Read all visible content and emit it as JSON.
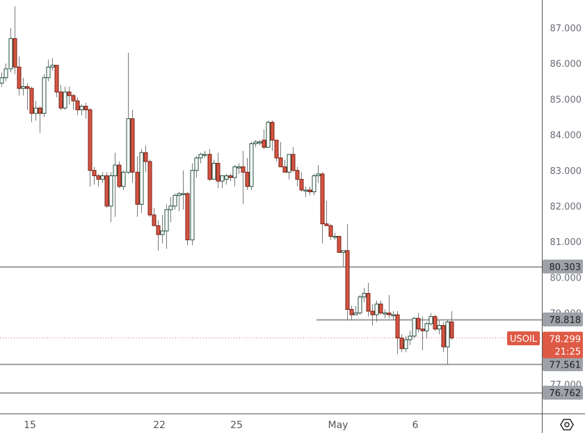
{
  "chart_data": {
    "type": "candlestick",
    "symbol": "USOIL",
    "title": "",
    "xlabel": "",
    "ylabel": "",
    "ylim": [
      76.3,
      87.8
    ],
    "y_ticks": [
      "87.000",
      "86.000",
      "85.000",
      "84.000",
      "83.000",
      "82.000",
      "81.000",
      "80.000",
      "79.000",
      "77.000"
    ],
    "x_ticks": [
      {
        "label": "15",
        "x": 43
      },
      {
        "label": "22",
        "x": 229
      },
      {
        "label": "25",
        "x": 340
      },
      {
        "label": "May",
        "x": 486
      },
      {
        "label": "6",
        "x": 597
      }
    ],
    "current_price": "78.299",
    "countdown": "21:25",
    "horizontal_levels": [
      {
        "price": "80.303",
        "x_start": 0
      },
      {
        "price": "78.818",
        "x_start": 455
      },
      {
        "price": "77.561",
        "x_start": 0
      },
      {
        "price": "76.762",
        "x_start": 0
      }
    ],
    "candles": [
      {
        "x": 2,
        "o": 85.45,
        "h": 85.75,
        "l": 85.35,
        "c": 85.6
      },
      {
        "x": 8,
        "o": 85.6,
        "h": 86.0,
        "l": 85.5,
        "c": 85.85
      },
      {
        "x": 15,
        "o": 85.85,
        "h": 87.0,
        "l": 85.75,
        "c": 86.7
      },
      {
        "x": 21,
        "o": 86.7,
        "h": 87.6,
        "l": 85.7,
        "c": 85.9
      },
      {
        "x": 27,
        "o": 85.9,
        "h": 86.2,
        "l": 85.1,
        "c": 85.3
      },
      {
        "x": 33,
        "o": 85.3,
        "h": 85.6,
        "l": 85.1,
        "c": 85.35
      },
      {
        "x": 39,
        "o": 85.35,
        "h": 85.45,
        "l": 84.7,
        "c": 85.3
      },
      {
        "x": 45,
        "o": 85.3,
        "h": 85.35,
        "l": 84.35,
        "c": 84.6
      },
      {
        "x": 51,
        "o": 84.6,
        "h": 84.95,
        "l": 84.4,
        "c": 84.75
      },
      {
        "x": 57,
        "o": 84.75,
        "h": 84.8,
        "l": 84.05,
        "c": 84.6
      },
      {
        "x": 63,
        "o": 84.6,
        "h": 85.7,
        "l": 84.5,
        "c": 85.6
      },
      {
        "x": 69,
        "o": 85.6,
        "h": 86.1,
        "l": 85.5,
        "c": 85.9
      },
      {
        "x": 75,
        "o": 85.9,
        "h": 86.15,
        "l": 85.8,
        "c": 85.95
      },
      {
        "x": 81,
        "o": 85.95,
        "h": 85.95,
        "l": 85.05,
        "c": 85.2
      },
      {
        "x": 87,
        "o": 85.2,
        "h": 85.4,
        "l": 84.7,
        "c": 84.75
      },
      {
        "x": 93,
        "o": 84.75,
        "h": 85.35,
        "l": 84.7,
        "c": 85.2
      },
      {
        "x": 99,
        "o": 85.2,
        "h": 85.35,
        "l": 84.85,
        "c": 85.1
      },
      {
        "x": 105,
        "o": 85.1,
        "h": 85.15,
        "l": 84.7,
        "c": 84.95
      },
      {
        "x": 111,
        "o": 84.95,
        "h": 85.05,
        "l": 84.55,
        "c": 84.7
      },
      {
        "x": 117,
        "o": 84.7,
        "h": 84.85,
        "l": 84.55,
        "c": 84.8
      },
      {
        "x": 123,
        "o": 84.8,
        "h": 84.9,
        "l": 84.45,
        "c": 84.7
      },
      {
        "x": 129,
        "o": 84.7,
        "h": 84.75,
        "l": 82.55,
        "c": 83.0
      },
      {
        "x": 135,
        "o": 83.0,
        "h": 83.1,
        "l": 82.6,
        "c": 82.85
      },
      {
        "x": 141,
        "o": 82.85,
        "h": 82.9,
        "l": 82.55,
        "c": 82.75
      },
      {
        "x": 147,
        "o": 82.75,
        "h": 82.95,
        "l": 82.65,
        "c": 82.85
      },
      {
        "x": 153,
        "o": 82.85,
        "h": 82.95,
        "l": 81.95,
        "c": 82.0
      },
      {
        "x": 159,
        "o": 82.0,
        "h": 82.95,
        "l": 81.55,
        "c": 82.85
      },
      {
        "x": 165,
        "o": 82.85,
        "h": 83.5,
        "l": 81.7,
        "c": 83.15
      },
      {
        "x": 171,
        "o": 83.15,
        "h": 83.25,
        "l": 82.5,
        "c": 82.55
      },
      {
        "x": 177,
        "o": 82.55,
        "h": 83.0,
        "l": 82.45,
        "c": 82.95
      },
      {
        "x": 184,
        "o": 82.95,
        "h": 86.3,
        "l": 82.9,
        "c": 84.45
      },
      {
        "x": 190,
        "o": 84.45,
        "h": 84.7,
        "l": 82.65,
        "c": 82.95
      },
      {
        "x": 197,
        "o": 82.95,
        "h": 83.4,
        "l": 81.7,
        "c": 82.05
      },
      {
        "x": 203,
        "o": 82.05,
        "h": 83.6,
        "l": 81.8,
        "c": 83.5
      },
      {
        "x": 209,
        "o": 83.5,
        "h": 83.7,
        "l": 82.95,
        "c": 83.25
      },
      {
        "x": 215,
        "o": 83.25,
        "h": 83.3,
        "l": 81.7,
        "c": 81.75
      },
      {
        "x": 221,
        "o": 81.75,
        "h": 81.95,
        "l": 81.45,
        "c": 81.45
      },
      {
        "x": 227,
        "o": 81.45,
        "h": 81.6,
        "l": 80.75,
        "c": 81.2
      },
      {
        "x": 233,
        "o": 81.2,
        "h": 81.75,
        "l": 80.95,
        "c": 81.3
      },
      {
        "x": 239,
        "o": 81.3,
        "h": 82.05,
        "l": 80.8,
        "c": 81.9
      },
      {
        "x": 245,
        "o": 81.9,
        "h": 82.25,
        "l": 81.55,
        "c": 82.0
      },
      {
        "x": 251,
        "o": 82.0,
        "h": 82.35,
        "l": 81.9,
        "c": 82.3
      },
      {
        "x": 257,
        "o": 82.3,
        "h": 82.4,
        "l": 81.85,
        "c": 82.35
      },
      {
        "x": 263,
        "o": 82.35,
        "h": 83.0,
        "l": 81.9,
        "c": 82.35
      },
      {
        "x": 269,
        "o": 82.35,
        "h": 82.4,
        "l": 80.9,
        "c": 81.05
      },
      {
        "x": 276,
        "o": 81.05,
        "h": 83.2,
        "l": 80.9,
        "c": 83.0
      },
      {
        "x": 282,
        "o": 83.0,
        "h": 83.4,
        "l": 82.8,
        "c": 83.35
      },
      {
        "x": 288,
        "o": 83.35,
        "h": 83.5,
        "l": 83.2,
        "c": 83.45
      },
      {
        "x": 294,
        "o": 83.45,
        "h": 83.55,
        "l": 83.35,
        "c": 83.45
      },
      {
        "x": 301,
        "o": 83.45,
        "h": 83.6,
        "l": 82.7,
        "c": 82.75
      },
      {
        "x": 307,
        "o": 82.75,
        "h": 83.3,
        "l": 82.75,
        "c": 83.2
      },
      {
        "x": 313,
        "o": 83.2,
        "h": 83.5,
        "l": 82.5,
        "c": 82.7
      },
      {
        "x": 319,
        "o": 82.7,
        "h": 82.8,
        "l": 82.5,
        "c": 82.85
      },
      {
        "x": 325,
        "o": 82.75,
        "h": 82.9,
        "l": 82.6,
        "c": 82.85
      },
      {
        "x": 331,
        "o": 82.85,
        "h": 82.9,
        "l": 82.7,
        "c": 82.8
      },
      {
        "x": 337,
        "o": 82.8,
        "h": 83.15,
        "l": 82.55,
        "c": 83.1
      },
      {
        "x": 343,
        "o": 83.1,
        "h": 83.2,
        "l": 82.9,
        "c": 83.1
      },
      {
        "x": 349,
        "o": 83.1,
        "h": 83.55,
        "l": 82.05,
        "c": 82.95
      },
      {
        "x": 355,
        "o": 82.95,
        "h": 83.35,
        "l": 82.45,
        "c": 82.55
      },
      {
        "x": 361,
        "o": 82.55,
        "h": 83.8,
        "l": 82.45,
        "c": 83.75
      },
      {
        "x": 367,
        "o": 83.75,
        "h": 83.85,
        "l": 83.65,
        "c": 83.8
      },
      {
        "x": 373,
        "o": 83.8,
        "h": 83.85,
        "l": 83.7,
        "c": 83.8
      },
      {
        "x": 379,
        "o": 83.85,
        "h": 84.15,
        "l": 83.6,
        "c": 83.65
      },
      {
        "x": 385,
        "o": 83.65,
        "h": 84.4,
        "l": 83.65,
        "c": 84.35
      },
      {
        "x": 391,
        "o": 84.35,
        "h": 84.4,
        "l": 83.55,
        "c": 83.85
      },
      {
        "x": 397,
        "o": 83.85,
        "h": 83.85,
        "l": 83.25,
        "c": 83.35
      },
      {
        "x": 403,
        "o": 83.35,
        "h": 83.8,
        "l": 83.2,
        "c": 83.1
      },
      {
        "x": 409,
        "o": 83.1,
        "h": 83.3,
        "l": 82.95,
        "c": 82.95
      },
      {
        "x": 415,
        "o": 82.95,
        "h": 83.4,
        "l": 82.75,
        "c": 83.45
      },
      {
        "x": 421,
        "o": 83.45,
        "h": 83.65,
        "l": 82.95,
        "c": 83.0
      },
      {
        "x": 427,
        "o": 83.0,
        "h": 83.1,
        "l": 82.55,
        "c": 82.75
      },
      {
        "x": 433,
        "o": 82.75,
        "h": 82.95,
        "l": 82.4,
        "c": 82.45
      },
      {
        "x": 439,
        "o": 82.45,
        "h": 82.55,
        "l": 82.25,
        "c": 82.45
      },
      {
        "x": 445,
        "o": 82.45,
        "h": 82.55,
        "l": 82.3,
        "c": 82.4
      },
      {
        "x": 451,
        "o": 82.4,
        "h": 82.9,
        "l": 82.3,
        "c": 82.85
      },
      {
        "x": 457,
        "o": 82.85,
        "h": 83.15,
        "l": 82.65,
        "c": 82.9
      },
      {
        "x": 463,
        "o": 82.9,
        "h": 82.95,
        "l": 80.95,
        "c": 81.5
      },
      {
        "x": 469,
        "o": 81.5,
        "h": 82.15,
        "l": 81.5,
        "c": 81.45
      },
      {
        "x": 475,
        "o": 81.45,
        "h": 81.5,
        "l": 81.05,
        "c": 81.15
      },
      {
        "x": 481,
        "o": 81.15,
        "h": 81.25,
        "l": 81.05,
        "c": 81.15
      },
      {
        "x": 487,
        "o": 81.15,
        "h": 81.15,
        "l": 80.7,
        "c": 80.7
      },
      {
        "x": 493,
        "o": 80.7,
        "h": 80.75,
        "l": 80.3,
        "c": 80.75
      },
      {
        "x": 499,
        "o": 80.75,
        "h": 81.5,
        "l": 78.8,
        "c": 79.1
      },
      {
        "x": 505,
        "o": 79.1,
        "h": 79.2,
        "l": 78.8,
        "c": 78.95
      },
      {
        "x": 511,
        "o": 78.95,
        "h": 79.2,
        "l": 78.95,
        "c": 79.0
      },
      {
        "x": 517,
        "o": 79.0,
        "h": 79.5,
        "l": 78.95,
        "c": 79.45
      },
      {
        "x": 523,
        "o": 79.45,
        "h": 79.7,
        "l": 79.3,
        "c": 79.55
      },
      {
        "x": 529,
        "o": 79.55,
        "h": 79.85,
        "l": 78.9,
        "c": 79.05
      },
      {
        "x": 535,
        "o": 79.05,
        "h": 79.25,
        "l": 78.65,
        "c": 78.95
      },
      {
        "x": 541,
        "o": 78.95,
        "h": 79.35,
        "l": 78.75,
        "c": 79.25
      },
      {
        "x": 547,
        "o": 79.25,
        "h": 79.35,
        "l": 78.95,
        "c": 79.0
      },
      {
        "x": 553,
        "o": 79.0,
        "h": 79.1,
        "l": 78.85,
        "c": 79.0
      },
      {
        "x": 559,
        "o": 79.0,
        "h": 79.5,
        "l": 78.85,
        "c": 78.95
      },
      {
        "x": 565,
        "o": 78.95,
        "h": 79.05,
        "l": 78.8,
        "c": 78.95
      },
      {
        "x": 571,
        "o": 78.95,
        "h": 79.05,
        "l": 77.85,
        "c": 78.3
      },
      {
        "x": 577,
        "o": 78.3,
        "h": 78.4,
        "l": 77.9,
        "c": 78.0
      },
      {
        "x": 583,
        "o": 78.0,
        "h": 78.35,
        "l": 77.9,
        "c": 78.25
      },
      {
        "x": 589,
        "o": 78.25,
        "h": 78.5,
        "l": 78.1,
        "c": 78.35
      },
      {
        "x": 595,
        "o": 78.35,
        "h": 78.9,
        "l": 78.3,
        "c": 78.85
      },
      {
        "x": 601,
        "o": 78.85,
        "h": 79.0,
        "l": 78.45,
        "c": 78.55
      },
      {
        "x": 607,
        "o": 78.55,
        "h": 78.9,
        "l": 77.95,
        "c": 78.5
      },
      {
        "x": 613,
        "o": 78.5,
        "h": 78.75,
        "l": 78.3,
        "c": 78.7
      },
      {
        "x": 619,
        "o": 78.7,
        "h": 79.0,
        "l": 78.65,
        "c": 78.9
      },
      {
        "x": 625,
        "o": 78.9,
        "h": 78.95,
        "l": 78.5,
        "c": 78.55
      },
      {
        "x": 631,
        "o": 78.55,
        "h": 78.8,
        "l": 78.4,
        "c": 78.65
      },
      {
        "x": 637,
        "o": 78.65,
        "h": 78.75,
        "l": 77.9,
        "c": 78.05
      },
      {
        "x": 643,
        "o": 78.05,
        "h": 78.8,
        "l": 77.55,
        "c": 78.75
      },
      {
        "x": 649,
        "o": 78.75,
        "h": 79.05,
        "l": 78.25,
        "c": 78.3
      }
    ]
  },
  "axis": {
    "price_labels": [
      "87.000",
      "86.000",
      "85.000",
      "84.000",
      "83.000",
      "82.000",
      "81.000",
      "80.000",
      "79.000",
      "77.000"
    ],
    "time_labels": [
      "15",
      "22",
      "25",
      "May",
      "6"
    ]
  },
  "price_tags": {
    "level_1": "80.303",
    "level_2": "78.818",
    "current": "78.299",
    "countdown": "21:25",
    "level_3": "77.561",
    "level_4": "76.762"
  },
  "symbol_label": "USOIL",
  "settings_icon": "gear-hexagon-icon",
  "colors": {
    "up_border": "#1e4d3a",
    "down_fill": "#d35442",
    "down_border": "#7a1f14",
    "wick": "#777777",
    "level_line": "#9a9a9a",
    "tag_bg": "#9ea2a8",
    "current_bg": "#de5a45",
    "current_line": "#e06666"
  }
}
